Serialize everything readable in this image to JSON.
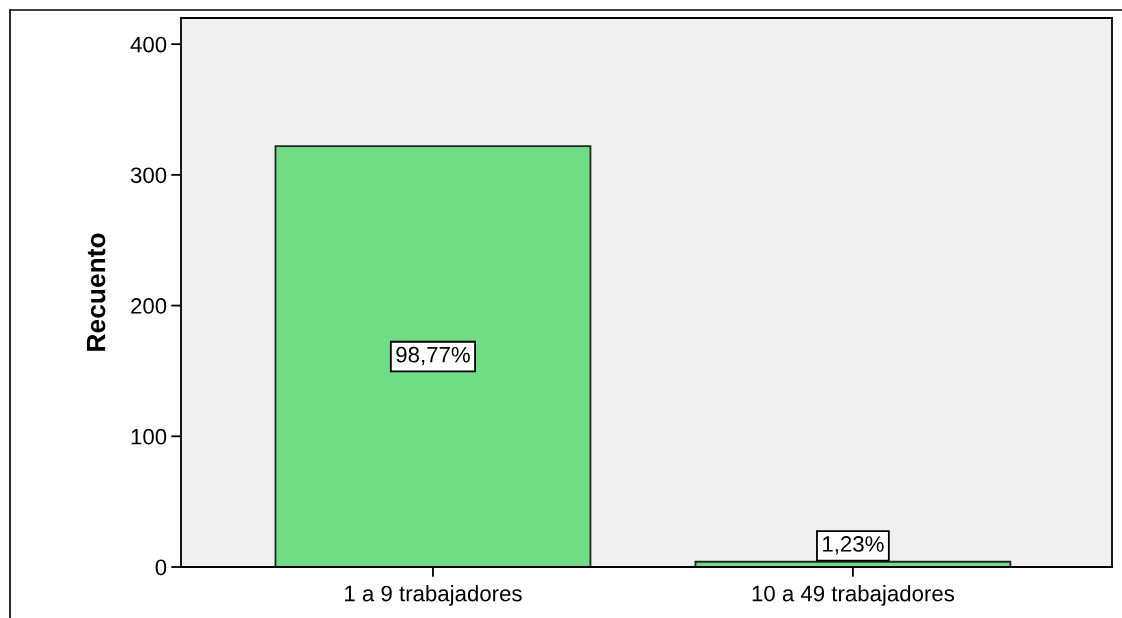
{
  "chart_data": {
    "type": "bar",
    "ylabel": "Recuento",
    "categories": [
      "1 a 9 trabajadores",
      "10 a 49 trabajadores"
    ],
    "values": [
      322,
      4
    ],
    "color": "#70dc85",
    "annotations": [
      "98,77%",
      "1,23%"
    ],
    "ylim": [
      0,
      420
    ],
    "yticks": [
      0,
      100,
      200,
      300,
      400
    ]
  }
}
